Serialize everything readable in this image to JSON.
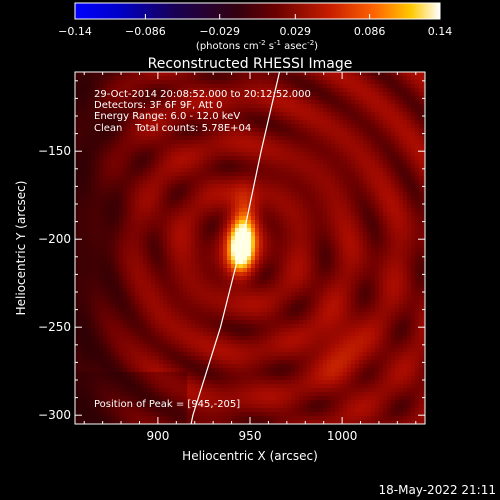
{
  "chart_data": {
    "type": "heatmap",
    "title": "Reconstructed RHESSI Image",
    "xlabel": "Heliocentric X (arcsec)",
    "ylabel": "Heliocentric Y (arcsec)",
    "xlim": [
      855,
      1045
    ],
    "ylim": [
      -305,
      -105
    ],
    "x_ticks": [
      900,
      950,
      1000
    ],
    "y_ticks": [
      -150,
      -200,
      -250,
      -300
    ],
    "grid": false,
    "colorbar": {
      "range": [
        -0.14,
        0.14
      ],
      "ticks": [
        "-0.14",
        "-0.086",
        "-0.029",
        "0.029",
        "0.086",
        "0.14"
      ],
      "unit_parts": [
        "(photons cm",
        "-2",
        " s",
        "-1",
        " asec",
        "-2",
        ")"
      ]
    },
    "annotations": [
      "29-Oct-2014 20:08:52.000 to 20:12:52.000",
      "Detectors: 3F 6F 9F, Att 0",
      "Energy Range: 6.0 - 12.0 keV",
      "Clean    Total counts: 5.78E+04"
    ],
    "peak_label": "Position of Peak = [945,-205]",
    "peak": {
      "x": 945,
      "y": -205
    },
    "sources": [
      {
        "x": 945,
        "y": -206,
        "sx": 5,
        "sy": 9,
        "amp": 1.0
      },
      {
        "x": 947,
        "y": -190,
        "sx": 5,
        "sy": 12,
        "amp": 0.45
      },
      {
        "x": 998,
        "y": -262,
        "sx": 9,
        "sy": 12,
        "amp": 0.22
      }
    ],
    "limb": [
      {
        "x": 966,
        "y": -105
      },
      {
        "x": 956,
        "y": -150
      },
      {
        "x": 946,
        "y": -200
      },
      {
        "x": 934,
        "y": -250
      },
      {
        "x": 919,
        "y": -300
      },
      {
        "x": 918,
        "y": -305
      }
    ]
  },
  "footer": {
    "timestamp": "18-May-2022 21:11"
  }
}
